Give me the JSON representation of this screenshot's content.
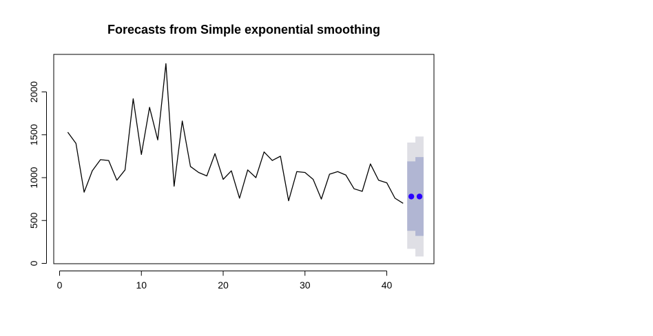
{
  "chart_data": {
    "type": "line",
    "title": "Forecasts from Simple exponential smoothing",
    "xlabel": "",
    "ylabel": "",
    "xlim": [
      0,
      45
    ],
    "ylim": [
      0,
      2350
    ],
    "x_ticks": [
      0,
      10,
      20,
      30,
      40
    ],
    "y_ticks": [
      0,
      500,
      1000,
      1500,
      2000
    ],
    "grid": false,
    "legend": "none",
    "series": [
      {
        "x": [
          1,
          2,
          3,
          4,
          5,
          6,
          7,
          8,
          9,
          10,
          11,
          12,
          13,
          14,
          15,
          16,
          17,
          18,
          19,
          20,
          21,
          22,
          23,
          24,
          25,
          26,
          27,
          28,
          29,
          30,
          31,
          32,
          33,
          34,
          35,
          36,
          37,
          38,
          39,
          40,
          41,
          42
        ],
        "values": [
          1530,
          1400,
          830,
          1080,
          1210,
          1200,
          970,
          1090,
          1920,
          1270,
          1820,
          1440,
          2330,
          900,
          1660,
          1130,
          1060,
          1020,
          1280,
          980,
          1080,
          760,
          1090,
          1000,
          1300,
          1200,
          1250,
          730,
          1070,
          1060,
          980,
          750,
          1040,
          1070,
          1030,
          870,
          840,
          1160,
          970,
          940,
          760,
          700
        ]
      }
    ],
    "forecast": {
      "x": [
        43,
        44
      ],
      "point": [
        780,
        780
      ],
      "lo80": [
        380,
        320
      ],
      "hi80": [
        1190,
        1240
      ],
      "lo95": [
        170,
        80
      ],
      "hi95": [
        1410,
        1480
      ]
    },
    "colors": {
      "line": "#000000",
      "band95": "#dfdfe5",
      "band80": "#b1b6d3",
      "point": "#2a00ff"
    }
  }
}
